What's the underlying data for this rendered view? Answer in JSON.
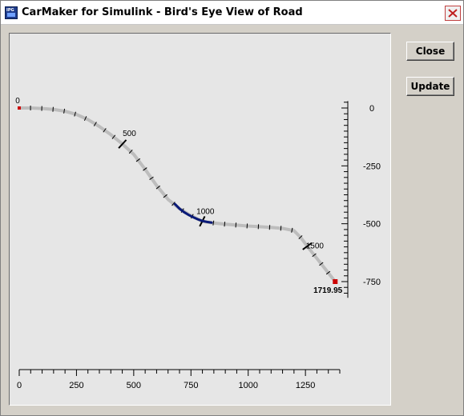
{
  "window": {
    "title": "CarMaker for Simulink - Bird's Eye View of Road",
    "icon": "carmaker-app-icon",
    "icon_text": "IPG"
  },
  "buttons": {
    "close_label": "Close",
    "update_label": "Update"
  },
  "chart_data": {
    "type": "line",
    "title": "",
    "xlabel": "",
    "ylabel": "",
    "xlim": [
      0,
      1400
    ],
    "ylim": [
      -820,
      30
    ],
    "x_ticks": [
      0,
      250,
      500,
      750,
      1000,
      1250
    ],
    "x_tick_labels": [
      "0",
      "250",
      "500",
      "750",
      "1000",
      "1250"
    ],
    "y_ticks": [
      0,
      -250,
      -500,
      -750
    ],
    "y_tick_labels": [
      "0",
      "-250",
      "-500",
      "-750"
    ],
    "grid": false,
    "road": {
      "x": [
        0,
        50,
        100,
        150,
        200,
        250,
        300,
        350,
        400,
        450,
        500,
        550,
        600,
        650,
        700,
        750,
        800,
        850,
        900,
        950,
        1000,
        1050,
        1100,
        1150,
        1200,
        1230,
        1260,
        1300,
        1340,
        1380
      ],
      "y": [
        0,
        0,
        -2,
        -6,
        -14,
        -28,
        -50,
        -80,
        -115,
        -155,
        -200,
        -265,
        -335,
        -395,
        -435,
        -465,
        -490,
        -497,
        -502,
        -506,
        -510,
        -513,
        -516,
        -520,
        -530,
        -560,
        -600,
        -650,
        -700,
        -750
      ]
    },
    "highlight_segment": {
      "color": "#0a1a78",
      "x": [
        680,
        700,
        720,
        740,
        760,
        780,
        800,
        820,
        840
      ],
      "y": [
        -415,
        -435,
        -450,
        -462,
        -472,
        -481,
        -488,
        -492,
        -495
      ]
    },
    "station_labels": [
      {
        "text": "0",
        "x": 0,
        "y": 0
      },
      {
        "text": "500",
        "x": 460,
        "y": -155
      },
      {
        "text": "1000",
        "x": 820,
        "y": -492
      },
      {
        "text": "1500",
        "x": 1270,
        "y": -620
      },
      {
        "text": "1719.95",
        "x": 1390,
        "y": -810
      }
    ],
    "start_marker_color": "#cc0000",
    "end_marker_color": "#cc0000",
    "road_color": "#bdbdbd"
  }
}
